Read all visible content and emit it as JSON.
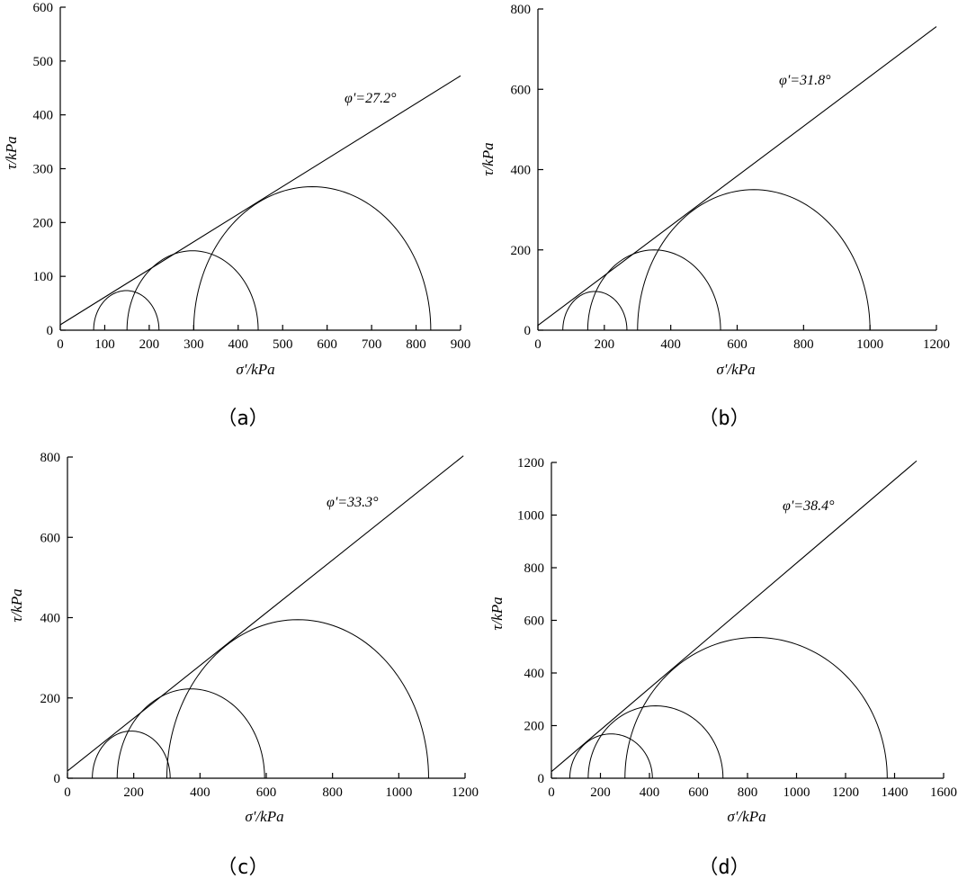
{
  "figure": {
    "colors": {
      "ink": "#000000",
      "background": "#ffffff"
    }
  },
  "chart_data": [
    {
      "type": "line",
      "panel_label": "（a）",
      "xlabel": "σ'/kPa",
      "ylabel": "τ/kPa",
      "xlim": [
        0,
        900
      ],
      "ylim": [
        0,
        600
      ],
      "xticks": [
        0,
        100,
        200,
        300,
        400,
        500,
        600,
        700,
        800,
        900
      ],
      "yticks": [
        0,
        100,
        200,
        300,
        400,
        500,
        600
      ],
      "envelope": {
        "label": "φ'=27.2°",
        "phi_deg": 27.2,
        "c": 10,
        "x_end": 900
      },
      "circles": [
        {
          "sigma3": 75,
          "sigma1": 222
        },
        {
          "sigma3": 150,
          "sigma1": 445
        },
        {
          "sigma3": 300,
          "sigma1": 833
        }
      ]
    },
    {
      "type": "line",
      "panel_label": "（b）",
      "xlabel": "σ'/kPa",
      "ylabel": "τ/kPa",
      "xlim": [
        0,
        1200
      ],
      "ylim": [
        0,
        800
      ],
      "xticks": [
        0,
        200,
        400,
        600,
        800,
        1000,
        1200
      ],
      "yticks": [
        0,
        200,
        400,
        600,
        800
      ],
      "envelope": {
        "label": "φ'=31.8°",
        "phi_deg": 31.8,
        "c": 12,
        "x_end": 1200
      },
      "circles": [
        {
          "sigma3": 75,
          "sigma1": 268
        },
        {
          "sigma3": 150,
          "sigma1": 550
        },
        {
          "sigma3": 300,
          "sigma1": 1000
        }
      ]
    },
    {
      "type": "line",
      "panel_label": "（c）",
      "xlabel": "σ'/kPa",
      "ylabel": "τ/kPa",
      "xlim": [
        0,
        1200
      ],
      "ylim": [
        0,
        800
      ],
      "xticks": [
        0,
        200,
        400,
        600,
        800,
        1000,
        1200
      ],
      "yticks": [
        0,
        200,
        400,
        600,
        800
      ],
      "envelope": {
        "label": "φ'=33.3°",
        "phi_deg": 33.3,
        "c": 18,
        "x_end": 1195
      },
      "circles": [
        {
          "sigma3": 75,
          "sigma1": 310
        },
        {
          "sigma3": 150,
          "sigma1": 595
        },
        {
          "sigma3": 300,
          "sigma1": 1090
        }
      ]
    },
    {
      "type": "line",
      "panel_label": "（d）",
      "xlabel": "σ'/kPa",
      "ylabel": "τ/kPa",
      "xlim": [
        0,
        1600
      ],
      "ylim": [
        0,
        1200
      ],
      "xticks": [
        0,
        200,
        400,
        600,
        800,
        1000,
        1200,
        1400,
        1600
      ],
      "yticks": [
        0,
        200,
        400,
        600,
        800,
        1000,
        1200
      ],
      "envelope": {
        "label": "φ'=38.4°",
        "phi_deg": 38.4,
        "c": 25,
        "x_end": 1490
      },
      "circles": [
        {
          "sigma3": 75,
          "sigma1": 412
        },
        {
          "sigma3": 150,
          "sigma1": 700
        },
        {
          "sigma3": 300,
          "sigma1": 1370
        }
      ]
    }
  ]
}
